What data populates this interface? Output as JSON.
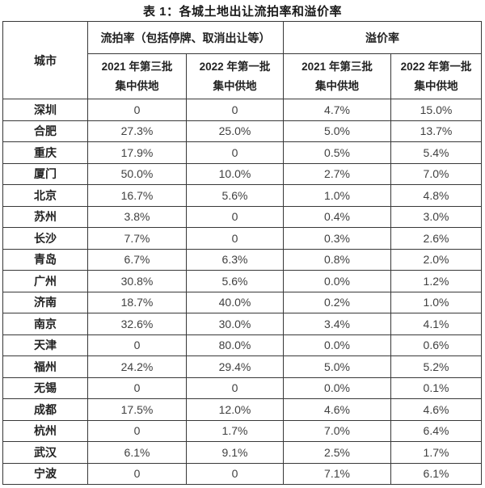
{
  "page": {
    "title": "表 1：各城土地出让流拍率和溢价率"
  },
  "table": {
    "city_header": "城市",
    "groups": [
      {
        "label": "流拍率（包括停牌、取消出让等）"
      },
      {
        "label": "溢价率"
      }
    ],
    "subheaders": {
      "batch_2021_line1": "2021 年第三批",
      "batch_2021_line2": "集中供地",
      "batch_2022_line1": "2022 年第一批",
      "batch_2022_line2": "集中供地"
    },
    "rows": [
      {
        "city": "深圳",
        "values": [
          "0",
          "0",
          "4.7%",
          "15.0%"
        ]
      },
      {
        "city": "合肥",
        "values": [
          "27.3%",
          "25.0%",
          "5.0%",
          "13.7%"
        ]
      },
      {
        "city": "重庆",
        "values": [
          "17.9%",
          "0",
          "0.5%",
          "5.4%"
        ]
      },
      {
        "city": "厦门",
        "values": [
          "50.0%",
          "10.0%",
          "2.7%",
          "7.0%"
        ]
      },
      {
        "city": "北京",
        "values": [
          "16.7%",
          "5.6%",
          "1.0%",
          "4.8%"
        ]
      },
      {
        "city": "苏州",
        "values": [
          "3.8%",
          "0",
          "0.4%",
          "3.0%"
        ]
      },
      {
        "city": "长沙",
        "values": [
          "7.7%",
          "0",
          "0.3%",
          "2.6%"
        ]
      },
      {
        "city": "青岛",
        "values": [
          "6.7%",
          "6.3%",
          "0.8%",
          "2.0%"
        ]
      },
      {
        "city": "广州",
        "values": [
          "30.8%",
          "5.6%",
          "0.0%",
          "1.2%"
        ]
      },
      {
        "city": "济南",
        "values": [
          "18.7%",
          "40.0%",
          "0.2%",
          "1.0%"
        ]
      },
      {
        "city": "南京",
        "values": [
          "32.6%",
          "30.0%",
          "3.4%",
          "4.1%"
        ]
      },
      {
        "city": "天津",
        "values": [
          "0",
          "80.0%",
          "0.0%",
          "0.6%"
        ]
      },
      {
        "city": "福州",
        "values": [
          "24.2%",
          "29.4%",
          "5.0%",
          "5.2%"
        ]
      },
      {
        "city": "无锡",
        "values": [
          "0",
          "0",
          "0.0%",
          "0.1%"
        ]
      },
      {
        "city": "成都",
        "values": [
          "17.5%",
          "12.0%",
          "4.6%",
          "4.6%"
        ]
      },
      {
        "city": "杭州",
        "values": [
          "0",
          "1.7%",
          "7.0%",
          "6.4%"
        ]
      },
      {
        "city": "武汉",
        "values": [
          "6.1%",
          "9.1%",
          "2.5%",
          "1.7%"
        ]
      },
      {
        "city": "宁波",
        "values": [
          "0",
          "0",
          "7.1%",
          "6.1%"
        ]
      }
    ]
  },
  "colors": {
    "border": "#383838",
    "header_text": "#222222",
    "value_text": "#404040",
    "title_text": "#1a1a1a",
    "background": "#ffffff"
  }
}
